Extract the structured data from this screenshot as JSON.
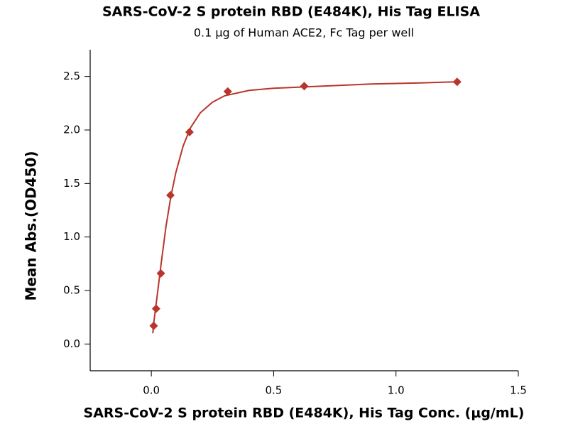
{
  "chart_data": {
    "type": "scatter",
    "title": "SARS-CoV-2 S protein RBD (E484K), His Tag ELISA",
    "subtitle": "0.1 μg of Human ACE2, Fc Tag per well",
    "x_label": "SARS-CoV-2 S protein RBD (E484K), His Tag Conc. (μg/mL)",
    "y_label": "Mean Abs.(OD450)",
    "color": "#b8352c",
    "x": [
      0.00977,
      0.0195,
      0.039,
      0.078,
      0.156,
      0.3125,
      0.625,
      1.25
    ],
    "values": [
      0.17,
      0.33,
      0.66,
      1.39,
      1.98,
      2.36,
      2.41,
      2.45
    ],
    "curve": {
      "x": [
        0.006,
        0.01,
        0.02,
        0.04,
        0.06,
        0.08,
        0.1,
        0.13,
        0.16,
        0.2,
        0.25,
        0.3,
        0.4,
        0.5,
        0.7,
        0.9,
        1.1,
        1.25
      ],
      "values": [
        0.1,
        0.2,
        0.38,
        0.75,
        1.1,
        1.38,
        1.6,
        1.85,
        2.02,
        2.16,
        2.26,
        2.32,
        2.37,
        2.39,
        2.41,
        2.43,
        2.44,
        2.45
      ]
    },
    "xlim": [
      -0.25,
      1.5
    ],
    "ylim": [
      -0.25,
      2.75
    ],
    "xticks": [
      {
        "value": 0,
        "label": "0.0"
      },
      0.5,
      {
        "value": 1,
        "label": "1.0"
      },
      1.5
    ],
    "yticks": [
      {
        "value": 0,
        "label": "0.0"
      },
      0.5,
      {
        "value": 1,
        "label": "1.0"
      },
      1.5,
      {
        "value": 2,
        "label": "2.0"
      },
      2.5
    ]
  }
}
